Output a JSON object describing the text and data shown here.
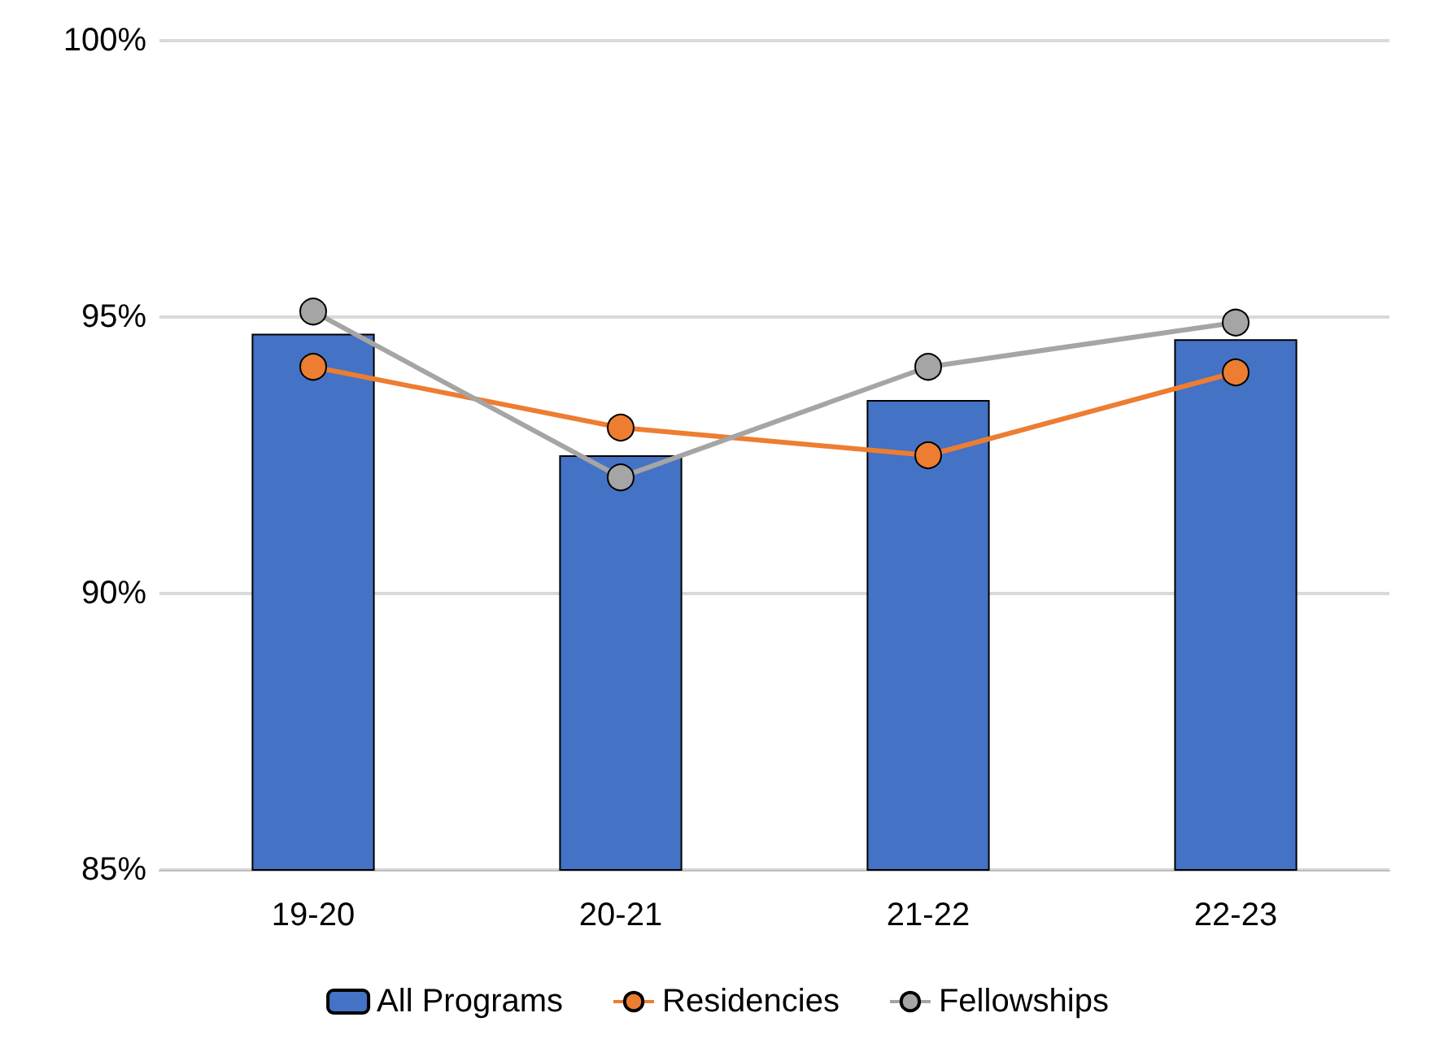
{
  "chart_data": {
    "type": "bar",
    "categories": [
      "19-20",
      "20-21",
      "21-22",
      "22-23"
    ],
    "series": [
      {
        "name": "All Programs",
        "color": "#4472c4",
        "values": [
          94.7,
          92.5,
          93.5,
          94.6
        ]
      },
      {
        "name": "Residencies",
        "type": "line",
        "color": "#ed7d31",
        "values": [
          94.1,
          93.0,
          92.5,
          94.0
        ]
      },
      {
        "name": "Fellowships",
        "type": "line",
        "color": "#a5a5a5",
        "values": [
          95.1,
          92.1,
          94.1,
          94.9
        ]
      }
    ],
    "ylim": [
      85,
      100
    ],
    "yticks": [
      {
        "value": 85,
        "label": "85%"
      },
      {
        "value": 90,
        "label": "90%"
      },
      {
        "value": 95,
        "label": "95%"
      },
      {
        "value": 100,
        "label": "100%"
      }
    ],
    "grid": "y",
    "legend": "bottom",
    "marker": "circle",
    "line_style": "solid"
  }
}
